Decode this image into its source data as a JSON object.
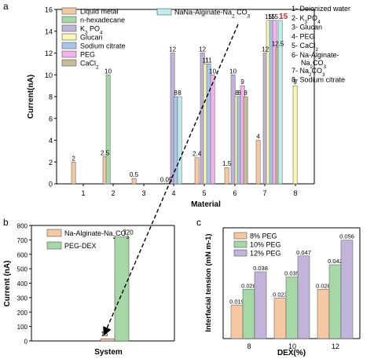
{
  "chart_data": [
    {
      "panel": "a",
      "type": "bar",
      "ylabel": "Current(nA)",
      "xlabel": "Material",
      "ylim": [
        0,
        16
      ],
      "yticks": [
        0,
        2,
        4,
        6,
        8,
        10,
        12,
        14,
        16
      ],
      "categories": [
        "1",
        "2",
        "3",
        "4",
        "5",
        "6",
        "7",
        "8"
      ],
      "legend_position": "top-left",
      "series": [
        {
          "name": "Liquid metal",
          "color": "#F6C8A2",
          "values": [
            2,
            2.5,
            0.5,
            0.05,
            2.4,
            1.5,
            4,
            null
          ]
        },
        {
          "name": "n-hexadecane",
          "color": "#A5D7A7",
          "values": [
            null,
            10,
            null,
            null,
            null,
            null,
            null,
            null
          ]
        },
        {
          "name": "K3 PO4",
          "color": "#C2B3DA",
          "values": [
            null,
            null,
            null,
            12,
            12,
            10,
            12,
            null
          ]
        },
        {
          "name": "Glucan",
          "color": "#FAF8AE",
          "values": [
            null,
            null,
            null,
            null,
            11,
            8,
            15,
            9
          ]
        },
        {
          "name": "Sodium citrate",
          "color": "#A9C6EA",
          "values": [
            null,
            null,
            null,
            8,
            11,
            8,
            15,
            null
          ]
        },
        {
          "name": "PEG",
          "color": "#F6B1EC",
          "values": [
            null,
            null,
            null,
            null,
            10,
            9,
            15,
            null
          ]
        },
        {
          "name": "CaCl2",
          "color": "#C3BC98",
          "values": [
            null,
            null,
            null,
            null,
            null,
            8,
            12.5,
            null
          ]
        },
        {
          "name": "NaNa-Alginate-Na2 CO3",
          "color": "#BCECEC",
          "values": [
            null,
            null,
            null,
            8,
            null,
            null,
            15,
            null
          ]
        }
      ],
      "bar_labels": [
        {
          "category": "1",
          "series": "Liquid metal",
          "text": "2"
        },
        {
          "category": "2",
          "series": "Liquid metal",
          "text": "2.5"
        },
        {
          "category": "2",
          "series": "n-hexadecane",
          "text": "10"
        },
        {
          "category": "3",
          "series": "Liquid metal",
          "text": "0.5"
        },
        {
          "category": "4",
          "series": "Liquid metal",
          "text": "0.05"
        },
        {
          "category": "4",
          "series": "K3 PO4",
          "text": "12"
        },
        {
          "category": "4",
          "series": "Sodium citrate",
          "text": "8"
        },
        {
          "category": "4",
          "series": "NaNa-Alginate-Na2 CO3",
          "text": "8"
        },
        {
          "category": "5",
          "series": "Liquid metal",
          "text": "2.4"
        },
        {
          "category": "5",
          "series": "K3 PO4",
          "text": "12"
        },
        {
          "category": "5",
          "series": "Glucan",
          "text": "11"
        },
        {
          "category": "5",
          "series": "Sodium citrate",
          "text": "11"
        },
        {
          "category": "5",
          "series": "PEG",
          "text": "10"
        },
        {
          "category": "6",
          "series": "Liquid metal",
          "text": "1.5"
        },
        {
          "category": "6",
          "series": "K3 PO4",
          "text": "10"
        },
        {
          "category": "6",
          "series": "Glucan",
          "text": "8"
        },
        {
          "category": "6",
          "series": "Sodium citrate",
          "text": "8"
        },
        {
          "category": "6",
          "series": "PEG",
          "text": "9"
        },
        {
          "category": "6",
          "series": "CaCl2",
          "text": "8"
        },
        {
          "category": "7",
          "series": "Liquid metal",
          "text": "4"
        },
        {
          "category": "7",
          "series": "K3 PO4",
          "text": "12"
        },
        {
          "category": "7",
          "series": "Glucan",
          "text": "15"
        },
        {
          "category": "7",
          "series": "Sodium citrate",
          "text": "15"
        },
        {
          "category": "7",
          "series": "PEG",
          "text": "15"
        },
        {
          "category": "7",
          "series": "CaCl2",
          "text": "12.5"
        },
        {
          "category": "7",
          "series": "NaNa-Alginate-Na2 CO3",
          "text": "15",
          "color": "#E8201E"
        },
        {
          "category": "8",
          "series": "Glucan",
          "text": "9"
        }
      ],
      "annotation_list": [
        "1-  Deionized water",
        "2-  K3PO4",
        "3-  Glucan",
        "4-  PEG",
        "5-  CaCl2",
        "6-  Na-Alginate-Na2CO3",
        "7-  Na2CO3",
        "8-  Sodium citrate"
      ]
    },
    {
      "panel": "b",
      "type": "bar",
      "ylabel": "Current (nA)",
      "xlabel": "System",
      "ylim": [
        0,
        800
      ],
      "yticks": [
        0,
        100,
        200,
        300,
        400,
        500,
        600,
        700,
        800
      ],
      "categories": [
        "System"
      ],
      "legend_position": "top-left",
      "series": [
        {
          "name": "Na-Alginate-Na2CO3",
          "color": "#F6C8A2",
          "values": [
            15
          ]
        },
        {
          "name": "PEG-DEX",
          "color": "#A5D7A7",
          "values": [
            720
          ]
        }
      ],
      "bar_labels": [
        {
          "series": "Na-Alginate-Na2CO3",
          "text": "15"
        },
        {
          "series": "PEG-DEX",
          "text": "720"
        }
      ]
    },
    {
      "panel": "c",
      "type": "bar",
      "ylabel": "Interfacial tension  (mN m-1)",
      "xlabel": "DEX(%)",
      "categories": [
        "8",
        "10",
        "12"
      ],
      "legend_position": "top-left",
      "series": [
        {
          "name": "8% PEG",
          "color": "#F6C8A2",
          "values": [
            0.019,
            0.023,
            0.028
          ]
        },
        {
          "name": "10% PEG",
          "color": "#A5D7A7",
          "values": [
            0.028,
            0.035,
            0.042
          ]
        },
        {
          "name": "12% PEG",
          "color": "#C2B3DA",
          "values": [
            0.038,
            0.047,
            0.056
          ]
        }
      ],
      "bar_labels": [
        [
          "0.019",
          "0.023",
          "0.028"
        ],
        [
          "0.028",
          "0.035",
          "0.042"
        ],
        [
          "0.038",
          "0.047",
          "0.056"
        ]
      ]
    }
  ]
}
